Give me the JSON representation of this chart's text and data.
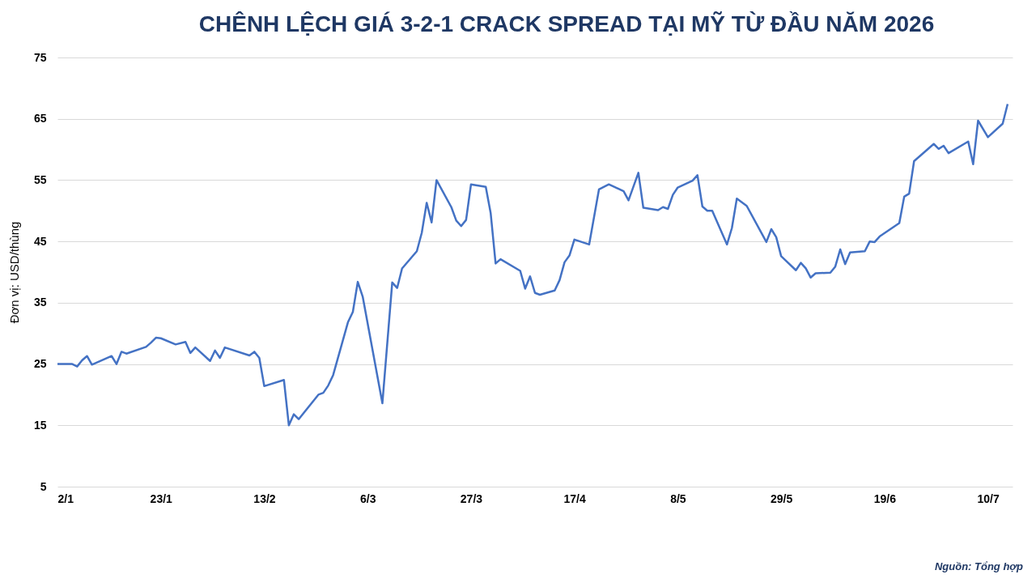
{
  "chart_data": {
    "type": "line",
    "title": "CHÊNH LỆCH GIÁ 3-2-1 CRACK SPREAD TẠI MỸ TỪ ĐẦU NĂM 2026",
    "ylabel": "Đơn vị: USD/thùng",
    "annotations": [
      "Nguồn: Tổng hợp"
    ],
    "x": [
      "2026-01-02",
      "2026-01-05",
      "2026-01-06",
      "2026-01-07",
      "2026-01-08",
      "2026-01-09",
      "2026-01-13",
      "2026-01-14",
      "2026-01-15",
      "2026-01-16",
      "2026-01-20",
      "2026-01-21",
      "2026-01-22",
      "2026-01-23",
      "2026-01-26",
      "2026-01-28",
      "2026-01-29",
      "2026-01-30",
      "2026-02-02",
      "2026-02-03",
      "2026-02-04",
      "2026-02-05",
      "2026-02-10",
      "2026-02-11",
      "2026-02-12",
      "2026-02-13",
      "2026-02-17",
      "2026-02-18",
      "2026-02-19",
      "2026-02-20",
      "2026-02-24",
      "2026-02-25",
      "2026-02-26",
      "2026-02-27",
      "2026-03-02",
      "2026-03-03",
      "2026-03-04",
      "2026-03-05",
      "2026-03-09",
      "2026-03-11",
      "2026-03-12",
      "2026-03-13",
      "2026-03-16",
      "2026-03-17",
      "2026-03-18",
      "2026-03-19",
      "2026-03-20",
      "2026-03-23",
      "2026-03-24",
      "2026-03-25",
      "2026-03-26",
      "2026-03-27",
      "2026-03-30",
      "2026-03-31",
      "2026-04-01",
      "2026-04-02",
      "2026-04-06",
      "2026-04-07",
      "2026-04-08",
      "2026-04-09",
      "2026-04-10",
      "2026-04-13",
      "2026-04-14",
      "2026-04-15",
      "2026-04-16",
      "2026-04-17",
      "2026-04-20",
      "2026-04-22",
      "2026-04-24",
      "2026-04-27",
      "2026-04-28",
      "2026-04-30",
      "2026-05-01",
      "2026-05-04",
      "2026-05-05",
      "2026-05-06",
      "2026-05-07",
      "2026-05-08",
      "2026-05-11",
      "2026-05-12",
      "2026-05-13",
      "2026-05-14",
      "2026-05-15",
      "2026-05-18",
      "2026-05-19",
      "2026-05-20",
      "2026-05-22",
      "2026-05-26",
      "2026-05-27",
      "2026-05-28",
      "2026-05-29",
      "2026-06-01",
      "2026-06-02",
      "2026-06-03",
      "2026-06-04",
      "2026-06-05",
      "2026-06-08",
      "2026-06-09",
      "2026-06-10",
      "2026-06-11",
      "2026-06-12",
      "2026-06-15",
      "2026-06-16",
      "2026-06-17",
      "2026-06-18",
      "2026-06-22",
      "2026-06-23",
      "2026-06-24",
      "2026-06-25",
      "2026-06-29",
      "2026-06-30",
      "2026-07-01",
      "2026-07-02",
      "2026-07-06",
      "2026-07-07",
      "2026-07-08",
      "2026-07-10",
      "2026-07-13",
      "2026-07-14"
    ],
    "series": [
      {
        "color": "#4472c4",
        "values": [
          25.0,
          25.0,
          24.6,
          25.6,
          26.3,
          24.9,
          26.3,
          25.0,
          27.0,
          26.7,
          27.8,
          28.5,
          29.3,
          29.2,
          28.2,
          28.6,
          26.8,
          27.7,
          25.5,
          27.2,
          26.0,
          27.7,
          26.4,
          27.0,
          26.0,
          21.4,
          22.4,
          15.0,
          16.8,
          16.0,
          20.0,
          20.3,
          21.5,
          23.2,
          31.8,
          33.5,
          38.4,
          36.0,
          18.6,
          38.3,
          37.4,
          40.6,
          43.4,
          46.4,
          51.3,
          48.1,
          55.0,
          50.6,
          48.4,
          47.5,
          48.5,
          54.3,
          53.9,
          49.6,
          41.4,
          42.1,
          40.2,
          37.3,
          39.3,
          36.6,
          36.3,
          37.0,
          38.7,
          41.6,
          42.7,
          45.3,
          44.5,
          53.5,
          54.3,
          53.2,
          51.7,
          56.2,
          50.5,
          50.1,
          50.6,
          50.3,
          52.6,
          53.8,
          54.9,
          55.8,
          50.7,
          50.0,
          50.0,
          44.5,
          47.2,
          52.0,
          50.8,
          44.9,
          47.0,
          45.7,
          42.6,
          40.3,
          41.5,
          40.6,
          39.1,
          39.8,
          39.9,
          40.9,
          43.7,
          41.3,
          43.2,
          43.4,
          45.0,
          44.9,
          45.8,
          48.0,
          52.3,
          52.8,
          58.1,
          60.9,
          60.1,
          60.6,
          59.4,
          61.3,
          57.6,
          64.7,
          62.0,
          64.2,
          67.4
        ]
      }
    ],
    "xlim": [
      "2026-01-02",
      "2026-07-15"
    ],
    "xticks": [
      {
        "value": "2026-01-02",
        "label": "2/1"
      },
      {
        "value": "2026-01-23",
        "label": "23/1"
      },
      {
        "value": "2026-02-13",
        "label": "13/2"
      },
      {
        "value": "2026-03-06",
        "label": "6/3"
      },
      {
        "value": "2026-03-27",
        "label": "27/3"
      },
      {
        "value": "2026-04-17",
        "label": "17/4"
      },
      {
        "value": "2026-05-08",
        "label": "8/5"
      },
      {
        "value": "2026-05-29",
        "label": "29/5"
      },
      {
        "value": "2026-06-19",
        "label": "19/6"
      },
      {
        "value": "2026-07-10",
        "label": "10/7"
      }
    ],
    "ylim": [
      5,
      75
    ],
    "yticks": [
      5,
      15,
      25,
      35,
      45,
      55,
      65,
      75
    ],
    "grid": "y",
    "marker": "none",
    "line_style": "solid"
  }
}
